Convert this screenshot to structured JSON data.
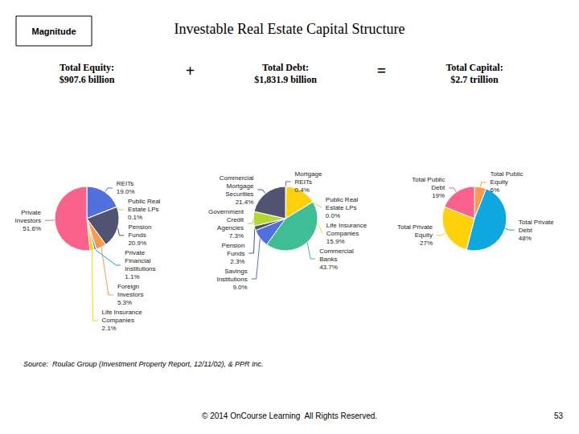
{
  "title": "Investable Real Estate Capital Structure",
  "annotations": [
    "Magnitude",
    "+",
    "=",
    "Source:  Roulac Group (Investment Property Report, 12/11/02), & PPR Inc.",
    "© 2014 OnCourse Learning  All Rights Reserved.",
    "53"
  ],
  "chart_data": [
    {
      "type": "pie",
      "title": "Total Equity:\n$907.6 billion",
      "categories": [
        "REITs",
        "Public Real\nEstate LPs",
        "Pension\nFunds",
        "Foreign\nInvestors",
        "Private\nFinancial\nInstitutions",
        "Life Insurance\nCompanies",
        "Private\nInvestors"
      ],
      "values": [
        19.0,
        0.1,
        20.9,
        5.3,
        1.1,
        2.1,
        51.6
      ],
      "value_labels": [
        "19.0%",
        "0.1%",
        "20.9%",
        "5.3%",
        "1.1%",
        "2.1%",
        "51.6%"
      ],
      "data_labels": true
    },
    {
      "type": "pie",
      "title": "Total Debt:\n$1,831.9 billion",
      "categories": [
        "Mortgage\nREITs",
        "Public Real\nEstate LPs",
        "Life Insurance\nCompanies",
        "Commercial\nBanks",
        "Savings\nInstitutions",
        "Pension\nFunds",
        "Government\nCredit\nAgencies",
        "Commercial\nMortgage\nSecurities"
      ],
      "values": [
        0.4,
        0.0,
        15.9,
        43.7,
        9.0,
        2.3,
        7.3,
        21.4
      ],
      "value_labels": [
        "0.4%",
        "0.0%",
        "15.9%",
        "43.7%",
        "9.0%",
        "2.3%",
        "7.3%",
        "21.4%"
      ],
      "data_labels": true
    },
    {
      "type": "pie",
      "title": "Total Capital:\n$2.7 trillion",
      "categories": [
        "Total Public\nEquity",
        "Total Private\nDebt",
        "Total Private\nEquity",
        "Total Public\nDebt"
      ],
      "values": [
        6,
        48,
        27,
        19
      ],
      "value_labels": [
        "6%",
        "48%",
        "27%",
        "19%"
      ],
      "data_labels": true
    }
  ]
}
